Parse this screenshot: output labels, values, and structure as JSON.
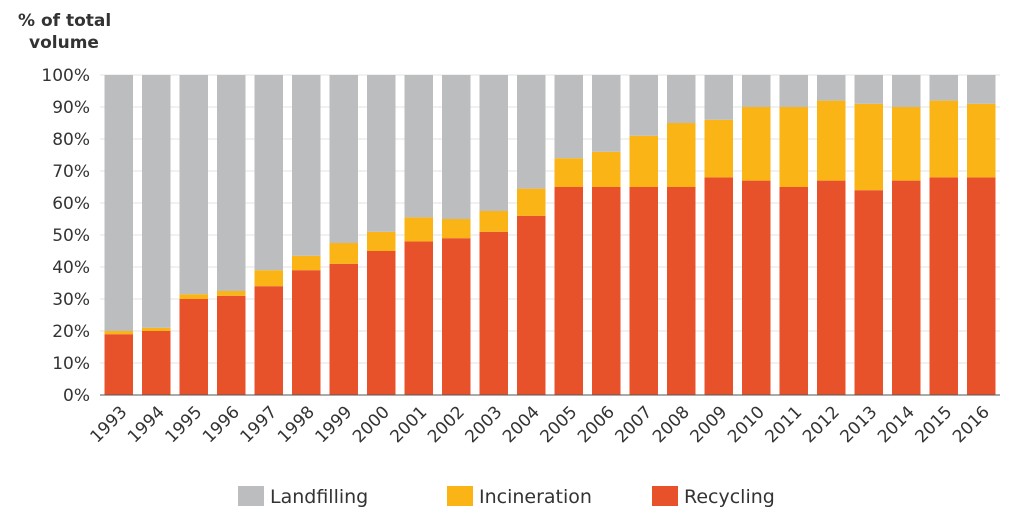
{
  "chart_data": {
    "type": "bar",
    "stacked": true,
    "title": "",
    "ylabel_lines": [
      "% of total",
      "volume"
    ],
    "xlabel": "",
    "ylim": [
      0,
      100
    ],
    "y_ticks": [
      0,
      10,
      20,
      30,
      40,
      50,
      60,
      70,
      80,
      90,
      100
    ],
    "y_tick_labels": [
      "0%",
      "10%",
      "20%",
      "30%",
      "40%",
      "50%",
      "60%",
      "70%",
      "80%",
      "90%",
      "100%"
    ],
    "grid": "horizontal",
    "legend_position": "bottom",
    "categories": [
      "1993",
      "1994",
      "1995",
      "1996",
      "1997",
      "1998",
      "1999",
      "2000",
      "2001",
      "2002",
      "2003",
      "2004",
      "2005",
      "2006",
      "2007",
      "2008",
      "2009",
      "2010",
      "2011",
      "2012",
      "2013",
      "2014",
      "2015",
      "2016"
    ],
    "series": [
      {
        "name": "Recycling",
        "color": "#e8522b",
        "values": [
          19,
          20,
          30,
          31,
          34,
          39,
          41,
          45,
          48,
          49,
          51,
          56,
          65,
          65,
          65,
          65,
          68,
          67,
          65,
          67,
          64,
          67,
          68,
          68
        ]
      },
      {
        "name": "Incineration",
        "color": "#fbb415",
        "values": [
          1,
          1,
          1.5,
          1.5,
          5,
          4.5,
          6.5,
          6,
          7.5,
          6,
          6.5,
          8.5,
          9,
          11,
          16,
          20,
          18,
          23,
          25,
          25,
          27,
          23,
          24,
          23
        ]
      },
      {
        "name": "Landfilling",
        "color": "#bcbdbf",
        "values": [
          80,
          79,
          68.5,
          67.5,
          61,
          56.5,
          52.5,
          49,
          44.5,
          45,
          42.5,
          35.5,
          26,
          24,
          19,
          15,
          14,
          10,
          10,
          8,
          9,
          10,
          8,
          9
        ]
      }
    ],
    "legend_order": [
      "Landfilling",
      "Incineration",
      "Recycling"
    ]
  }
}
